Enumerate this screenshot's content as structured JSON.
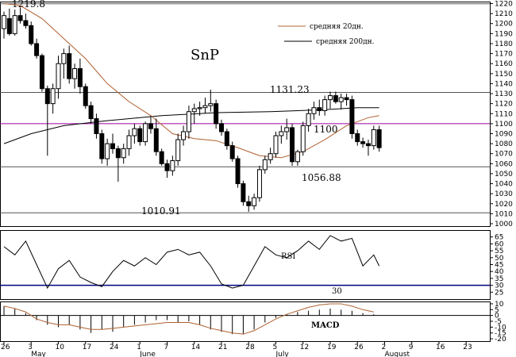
{
  "chart_data": [
    {
      "type": "candlestick",
      "title": "SnP",
      "ylim": [
        1000,
        1222
      ],
      "y_ticks": [
        1220,
        1210,
        1200,
        1190,
        1180,
        1170,
        1160,
        1150,
        1140,
        1130,
        1120,
        1110,
        1100,
        1090,
        1080,
        1070,
        1060,
        1050,
        1040,
        1030,
        1020,
        1010,
        1000
      ],
      "grid": false,
      "legend": "top-right",
      "colors": {
        "up": "#ffffff",
        "down": "#000000",
        "ma20": "#b06030",
        "ma200": "#000000",
        "magenta": "#a000a0",
        "lines": "#555555"
      },
      "series_names": {
        "ma20": "средняя 20дн.",
        "ma200": "средняя 200дн."
      },
      "horizontal_levels": [
        {
          "value": 1219.8,
          "label": "1219.8"
        },
        {
          "value": 1131.23,
          "label": "1131.23"
        },
        {
          "value": 1100,
          "label": "1100"
        },
        {
          "value": 1056.88,
          "label": "1056.88"
        },
        {
          "value": 1010.91,
          "label": "1010.91"
        }
      ],
      "candles": [
        [
          1,
          1195,
          1212,
          1185,
          1208
        ],
        [
          2,
          1205,
          1215,
          1188,
          1190
        ],
        [
          3,
          1190,
          1214,
          1188,
          1208
        ],
        [
          4,
          1208,
          1216,
          1200,
          1203
        ],
        [
          5,
          1203,
          1210,
          1195,
          1198
        ],
        [
          6,
          1198,
          1202,
          1178,
          1180
        ],
        [
          7,
          1180,
          1185,
          1165,
          1168
        ],
        [
          8,
          1168,
          1170,
          1132,
          1135
        ],
        [
          9,
          1135,
          1138,
          1068,
          1120
        ],
        [
          10,
          1120,
          1140,
          1110,
          1135
        ],
        [
          11,
          1135,
          1168,
          1125,
          1160
        ],
        [
          12,
          1160,
          1175,
          1145,
          1170
        ],
        [
          13,
          1170,
          1178,
          1140,
          1145
        ],
        [
          14,
          1145,
          1160,
          1135,
          1155
        ],
        [
          15,
          1155,
          1165,
          1130,
          1137
        ],
        [
          16,
          1137,
          1140,
          1115,
          1118
        ],
        [
          17,
          1118,
          1122,
          1100,
          1105
        ],
        [
          18,
          1105,
          1110,
          1085,
          1090
        ],
        [
          19,
          1090,
          1094,
          1060,
          1065
        ],
        [
          20,
          1065,
          1085,
          1058,
          1080
        ],
        [
          21,
          1080,
          1090,
          1070,
          1075
        ],
        [
          22,
          1075,
          1078,
          1042,
          1066
        ],
        [
          23,
          1066,
          1080,
          1060,
          1075
        ],
        [
          24,
          1075,
          1094,
          1068,
          1088
        ],
        [
          25,
          1088,
          1100,
          1080,
          1095
        ],
        [
          26,
          1095,
          1098,
          1078,
          1082
        ],
        [
          27,
          1082,
          1102,
          1078,
          1100
        ],
        [
          28,
          1100,
          1108,
          1090,
          1095
        ],
        [
          29,
          1095,
          1105,
          1068,
          1072
        ],
        [
          30,
          1072,
          1075,
          1058,
          1060
        ],
        [
          31,
          1060,
          1064,
          1046,
          1053
        ],
        [
          32,
          1053,
          1068,
          1048,
          1063
        ],
        [
          33,
          1063,
          1090,
          1058,
          1084
        ],
        [
          34,
          1084,
          1098,
          1078,
          1092
        ],
        [
          35,
          1092,
          1118,
          1085,
          1112
        ],
        [
          36,
          1112,
          1120,
          1100,
          1115
        ],
        [
          37,
          1115,
          1122,
          1108,
          1116
        ],
        [
          38,
          1116,
          1126,
          1110,
          1118
        ],
        [
          39,
          1118,
          1134,
          1112,
          1120
        ],
        [
          40,
          1120,
          1124,
          1095,
          1100
        ],
        [
          41,
          1100,
          1104,
          1088,
          1092
        ],
        [
          42,
          1092,
          1095,
          1074,
          1078
        ],
        [
          43,
          1078,
          1082,
          1062,
          1065
        ],
        [
          44,
          1065,
          1068,
          1036,
          1040
        ],
        [
          45,
          1040,
          1043,
          1018,
          1022
        ],
        [
          46,
          1022,
          1028,
          1012,
          1018
        ],
        [
          47,
          1018,
          1030,
          1014,
          1026
        ],
        [
          48,
          1026,
          1058,
          1022,
          1054
        ],
        [
          49,
          1054,
          1068,
          1050,
          1064
        ],
        [
          50,
          1064,
          1076,
          1060,
          1070
        ],
        [
          51,
          1070,
          1092,
          1066,
          1088
        ],
        [
          52,
          1088,
          1098,
          1080,
          1092
        ],
        [
          53,
          1092,
          1105,
          1084,
          1096
        ],
        [
          54,
          1096,
          1100,
          1058,
          1062
        ],
        [
          55,
          1062,
          1074,
          1058,
          1072
        ],
        [
          56,
          1072,
          1102,
          1068,
          1098
        ],
        [
          57,
          1098,
          1115,
          1092,
          1110
        ],
        [
          58,
          1110,
          1122,
          1104,
          1116
        ],
        [
          59,
          1116,
          1124,
          1108,
          1113
        ],
        [
          60,
          1113,
          1128,
          1108,
          1124
        ],
        [
          61,
          1124,
          1132,
          1115,
          1128
        ],
        [
          62,
          1128,
          1132,
          1120,
          1122
        ],
        [
          63,
          1122,
          1130,
          1114,
          1126
        ],
        [
          64,
          1126,
          1130,
          1118,
          1124
        ],
        [
          65,
          1124,
          1128,
          1085,
          1090
        ],
        [
          66,
          1090,
          1094,
          1078,
          1082
        ],
        [
          67,
          1082,
          1086,
          1076,
          1080
        ],
        [
          68,
          1080,
          1084,
          1068,
          1078
        ],
        [
          69,
          1078,
          1098,
          1074,
          1094
        ],
        [
          70,
          1094,
          1098,
          1072,
          1076
        ]
      ],
      "ma20": [
        [
          1,
          1220
        ],
        [
          4,
          1218
        ],
        [
          8,
          1205
        ],
        [
          12,
          1185
        ],
        [
          16,
          1165
        ],
        [
          20,
          1140
        ],
        [
          24,
          1122
        ],
        [
          28,
          1108
        ],
        [
          32,
          1090
        ],
        [
          36,
          1085
        ],
        [
          40,
          1083
        ],
        [
          44,
          1076
        ],
        [
          48,
          1068
        ],
        [
          52,
          1066
        ],
        [
          56,
          1072
        ],
        [
          60,
          1084
        ],
        [
          64,
          1098
        ],
        [
          68,
          1106
        ],
        [
          70,
          1108
        ]
      ],
      "ma200": [
        [
          1,
          1080
        ],
        [
          6,
          1090
        ],
        [
          12,
          1098
        ],
        [
          20,
          1103
        ],
        [
          30,
          1108
        ],
        [
          40,
          1111
        ],
        [
          50,
          1112
        ],
        [
          60,
          1114
        ],
        [
          66,
          1116
        ],
        [
          70,
          1116
        ]
      ]
    },
    {
      "type": "line",
      "title": "RSI",
      "ylim": [
        20,
        70
      ],
      "y_ticks": [
        65,
        60,
        55,
        50,
        45,
        40,
        35,
        30,
        25
      ],
      "grid": false,
      "reference_level": {
        "value": 30,
        "label": "30"
      },
      "x": [
        1,
        3,
        5,
        7,
        9,
        11,
        13,
        15,
        17,
        19,
        21,
        23,
        25,
        27,
        29,
        31,
        33,
        35,
        37,
        39,
        41,
        43,
        45,
        47,
        49,
        51,
        53,
        55,
        57,
        59,
        61,
        63,
        65,
        67,
        69,
        70
      ],
      "values": [
        58,
        52,
        62,
        45,
        28,
        42,
        48,
        36,
        32,
        29,
        40,
        48,
        44,
        50,
        45,
        54,
        56,
        52,
        54,
        44,
        31,
        28,
        30,
        44,
        58,
        52,
        50,
        55,
        62,
        56,
        66,
        62,
        64,
        44,
        52,
        44
      ]
    },
    {
      "type": "bar",
      "title": "MACD",
      "ylim": [
        -22,
        12
      ],
      "y_ticks": [
        10,
        5,
        0,
        -5,
        -10,
        -15,
        -20
      ],
      "x": [
        1,
        3,
        5,
        7,
        9,
        11,
        13,
        15,
        17,
        19,
        21,
        23,
        25,
        27,
        29,
        31,
        33,
        35,
        37,
        39,
        41,
        43,
        45,
        47,
        49,
        51,
        53,
        55,
        57,
        59,
        61,
        63,
        65,
        67,
        69
      ],
      "values": [
        8,
        6,
        2,
        -4,
        -8,
        -10,
        -8,
        -12,
        -15,
        -12,
        -14,
        -10,
        -8,
        -6,
        -4,
        -4,
        -6,
        -5,
        -8,
        -12,
        -14,
        -16,
        -16,
        -12,
        -6,
        -2,
        1,
        3,
        4,
        5,
        6,
        5,
        4,
        2,
        1
      ],
      "macd_line": [
        8,
        6,
        3,
        -3,
        -6,
        -8,
        -8,
        -10,
        -12,
        -12,
        -11,
        -10,
        -9,
        -8,
        -7,
        -6,
        -6,
        -6,
        -8,
        -11,
        -13,
        -15,
        -16,
        -13,
        -8,
        -3,
        1,
        4,
        7,
        9,
        10,
        10,
        8,
        5,
        3
      ]
    }
  ],
  "x_axis": {
    "ticks": [
      {
        "i": 1,
        "label": "26"
      },
      {
        "i": 6,
        "label": "3"
      },
      {
        "i": 11,
        "label": "10"
      },
      {
        "i": 16,
        "label": "17"
      },
      {
        "i": 21,
        "label": "24"
      },
      {
        "i": 26,
        "label": "1"
      },
      {
        "i": 31,
        "label": "7"
      },
      {
        "i": 36,
        "label": "14"
      },
      {
        "i": 41,
        "label": "21"
      },
      {
        "i": 46,
        "label": "28"
      },
      {
        "i": 51,
        "label": "5"
      },
      {
        "i": 56,
        "label": "12"
      },
      {
        "i": 61,
        "label": "19"
      },
      {
        "i": 66,
        "label": "26"
      },
      {
        "i": 71,
        "label": "2"
      },
      {
        "i": 76,
        "label": "9"
      },
      {
        "i": 81,
        "label": "16"
      },
      {
        "i": 86,
        "label": "23"
      }
    ],
    "months": [
      {
        "i": 6,
        "label": "May"
      },
      {
        "i": 26,
        "label": "June"
      },
      {
        "i": 51,
        "label": "July"
      },
      {
        "i": 71,
        "label": "August"
      }
    ]
  }
}
